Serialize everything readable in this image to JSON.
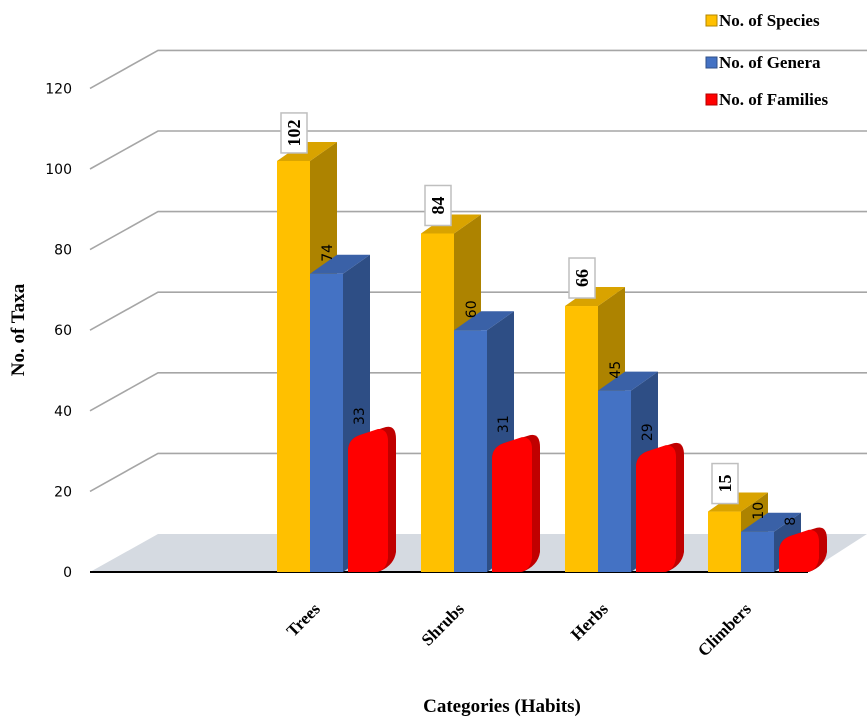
{
  "chart_data": {
    "type": "bar",
    "title": "",
    "xlabel": "Categories (Habits)",
    "ylabel": "No. of Taxa",
    "categories": [
      "Trees",
      "Shrubs",
      "Herbs",
      "Climbers"
    ],
    "ylim": [
      0,
      120
    ],
    "yticks": [
      0,
      20,
      40,
      60,
      80,
      100,
      120
    ],
    "grid": true,
    "legend_position": "top-right",
    "series": [
      {
        "name": "No. of Species",
        "values": [
          102,
          84,
          66,
          15
        ],
        "color": "#FFC000",
        "label_style": "boxed"
      },
      {
        "name": "No. of Genera",
        "values": [
          74,
          60,
          45,
          10
        ],
        "color": "#4472C4",
        "label_style": "plain"
      },
      {
        "name": "No. of Families",
        "values": [
          33,
          31,
          29,
          8
        ],
        "color": "#FF0000",
        "label_style": "plain"
      }
    ]
  }
}
